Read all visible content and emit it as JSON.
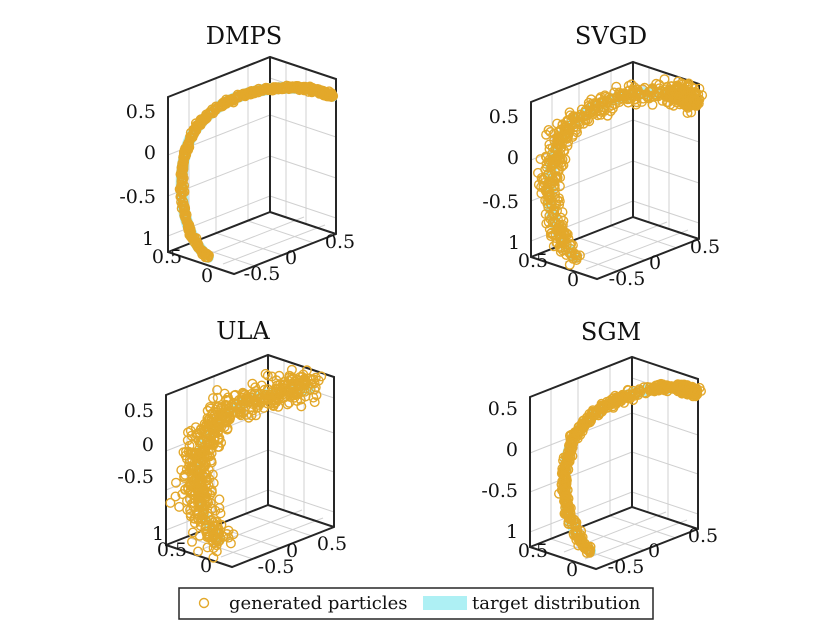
{
  "legend": {
    "items": [
      {
        "label": "generated particles",
        "marker": "circle",
        "color": "#e3a82a"
      },
      {
        "label": "target distribution",
        "marker": "patch",
        "color": "#aef0f4"
      }
    ]
  },
  "chart_data": [
    {
      "type": "scatter",
      "title": "DMPS",
      "ztick_labels": [
        "0.5",
        "0",
        "-0.5"
      ],
      "ytick_labels": [
        "1",
        "0.5",
        "0"
      ],
      "xtick_labels": [
        "-0.5",
        "0",
        "0.5"
      ],
      "zlim": [
        -0.75,
        0.75
      ],
      "ylim": [
        0,
        1
      ],
      "xlim": [
        -0.75,
        0.75
      ],
      "target": "half-circle arc, radius 0.75",
      "particles": {
        "count": 600,
        "spread": 0.01
      },
      "series": [
        {
          "name": "generated particles"
        },
        {
          "name": "target distribution"
        }
      ]
    },
    {
      "type": "scatter",
      "title": "SVGD",
      "ztick_labels": [
        "0.5",
        "0",
        "-0.5"
      ],
      "ytick_labels": [
        "1",
        "0.5",
        "0"
      ],
      "xtick_labels": [
        "-0.5",
        "0",
        "0.5"
      ],
      "zlim": [
        -0.75,
        0.75
      ],
      "ylim": [
        0,
        1
      ],
      "xlim": [
        -0.75,
        0.75
      ],
      "target": "half-circle arc, radius 0.75",
      "particles": {
        "count": 600,
        "spread": 0.05
      },
      "series": [
        {
          "name": "generated particles"
        },
        {
          "name": "target distribution"
        }
      ]
    },
    {
      "type": "scatter",
      "title": "ULA",
      "ztick_labels": [
        "0.5",
        "0",
        "-0.5"
      ],
      "ytick_labels": [
        "1",
        "0.5",
        "0"
      ],
      "xtick_labels": [
        "-0.5",
        "0",
        "0.5"
      ],
      "zlim": [
        -0.75,
        0.75
      ],
      "ylim": [
        0,
        1
      ],
      "xlim": [
        -0.75,
        0.75
      ],
      "target": "half-circle arc, radius 0.75",
      "particles": {
        "count": 600,
        "spread": 0.08
      },
      "series": [
        {
          "name": "generated particles"
        },
        {
          "name": "target distribution"
        }
      ]
    },
    {
      "type": "scatter",
      "title": "SGM",
      "ztick_labels": [
        "0.5",
        "0",
        "-0.5"
      ],
      "ytick_labels": [
        "1",
        "0.5",
        "0"
      ],
      "xtick_labels": [
        "-0.5",
        "0",
        "0.5"
      ],
      "zlim": [
        -0.75,
        0.75
      ],
      "ylim": [
        0,
        1
      ],
      "xlim": [
        -0.75,
        0.75
      ],
      "target": "half-circle arc, radius 0.75",
      "particles": {
        "count": 600,
        "spread": 0.02
      },
      "series": [
        {
          "name": "generated particles"
        },
        {
          "name": "target distribution"
        }
      ]
    }
  ]
}
